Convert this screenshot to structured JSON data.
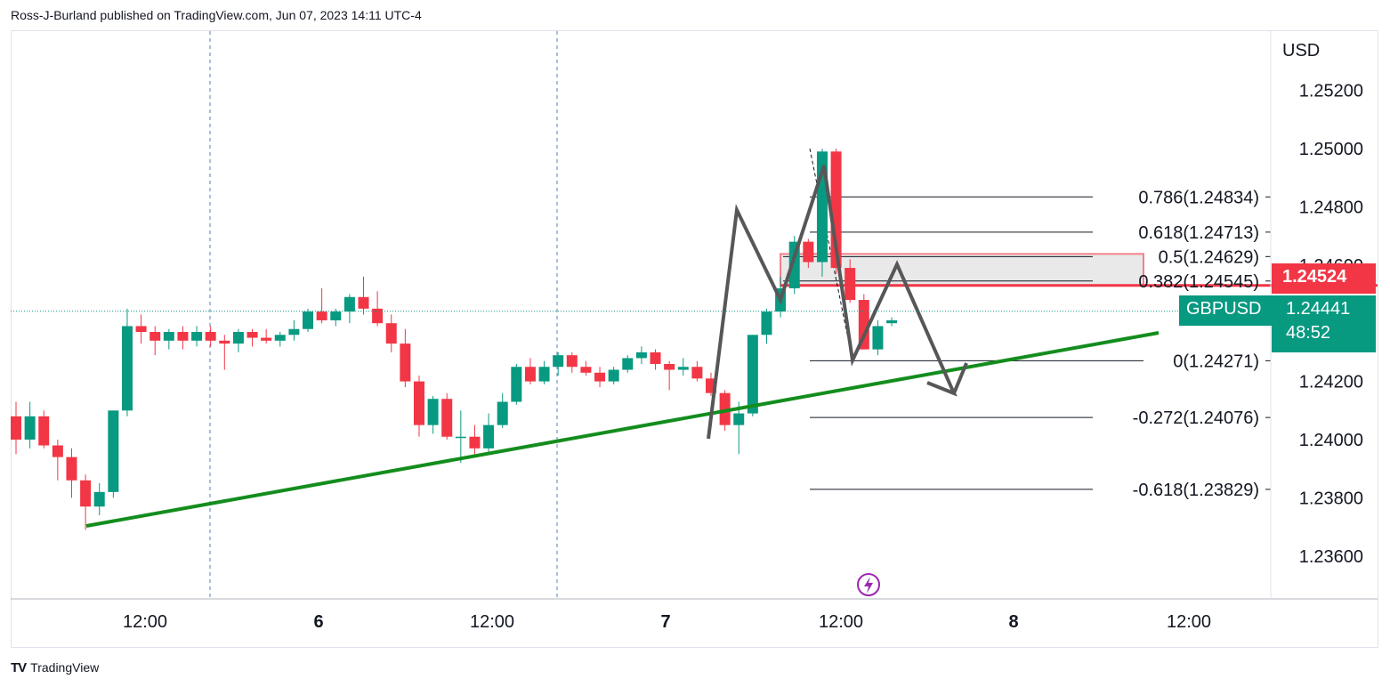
{
  "header": {
    "attribution": "Ross-J-Burland published on TradingView.com, Jun 07, 2023 14:11 UTC-4"
  },
  "footer": {
    "brand": "TradingView",
    "logo_icon": "tradingview-logo-icon"
  },
  "chart_data": {
    "type": "candlestick",
    "symbol": "GBPUSD",
    "currency_label": "USD",
    "y_ticks": [
      "1.25200",
      "1.25000",
      "1.24800",
      "1.24600",
      "1.24200",
      "1.24000",
      "1.23800",
      "1.23600"
    ],
    "x_ticks": [
      "12:00",
      "6",
      "12:00",
      "7",
      "12:00",
      "8",
      "12:00"
    ],
    "last_price": {
      "value": "1.24441",
      "countdown": "48:52",
      "color": "#089981"
    },
    "marked_price": {
      "value": "1.24524",
      "color": "#f23645"
    },
    "fib_levels": [
      {
        "ratio": "0.786",
        "price": 1.24834,
        "label": "0.786(1.24834)"
      },
      {
        "ratio": "0.618",
        "price": 1.24713,
        "label": "0.618(1.24713)"
      },
      {
        "ratio": "0.5",
        "price": 1.24629,
        "label": "0.5(1.24629)"
      },
      {
        "ratio": "0.382",
        "price": 1.24545,
        "label": "0.382(1.24545)"
      },
      {
        "ratio": "0",
        "price": 1.24271,
        "label": "0(1.24271)"
      },
      {
        "ratio": "-0.272",
        "price": 1.24076,
        "label": "-0.272(1.24076)"
      },
      {
        "ratio": "-0.618",
        "price": 1.23829,
        "label": "-0.618(1.23829)"
      }
    ],
    "candles": [
      {
        "o": 1.2408,
        "h": 1.2413,
        "l": 1.2395,
        "c": 1.24
      },
      {
        "o": 1.24,
        "h": 1.2413,
        "l": 1.2397,
        "c": 1.2408
      },
      {
        "o": 1.2408,
        "h": 1.241,
        "l": 1.2397,
        "c": 1.2398
      },
      {
        "o": 1.2398,
        "h": 1.24,
        "l": 1.2386,
        "c": 1.2394
      },
      {
        "o": 1.2394,
        "h": 1.2397,
        "l": 1.238,
        "c": 1.2386
      },
      {
        "o": 1.2386,
        "h": 1.2388,
        "l": 1.2369,
        "c": 1.2377
      },
      {
        "o": 1.2377,
        "h": 1.2385,
        "l": 1.2374,
        "c": 1.2382
      },
      {
        "o": 1.2382,
        "h": 1.241,
        "l": 1.238,
        "c": 1.241
      },
      {
        "o": 1.241,
        "h": 1.2445,
        "l": 1.2408,
        "c": 1.2439
      },
      {
        "o": 1.2439,
        "h": 1.2443,
        "l": 1.2433,
        "c": 1.2437
      },
      {
        "o": 1.2437,
        "h": 1.2439,
        "l": 1.2429,
        "c": 1.2434
      },
      {
        "o": 1.2434,
        "h": 1.2438,
        "l": 1.2431,
        "c": 1.2437
      },
      {
        "o": 1.2437,
        "h": 1.2439,
        "l": 1.2431,
        "c": 1.2434
      },
      {
        "o": 1.2434,
        "h": 1.2439,
        "l": 1.2432,
        "c": 1.2437
      },
      {
        "o": 1.2437,
        "h": 1.2439,
        "l": 1.2432,
        "c": 1.2434
      },
      {
        "o": 1.2434,
        "h": 1.2436,
        "l": 1.2424,
        "c": 1.2433
      },
      {
        "o": 1.2433,
        "h": 1.2438,
        "l": 1.243,
        "c": 1.2437
      },
      {
        "o": 1.2437,
        "h": 1.2438,
        "l": 1.2432,
        "c": 1.2435
      },
      {
        "o": 1.2435,
        "h": 1.2438,
        "l": 1.2433,
        "c": 1.2434
      },
      {
        "o": 1.2434,
        "h": 1.2437,
        "l": 1.2432,
        "c": 1.2436
      },
      {
        "o": 1.2436,
        "h": 1.2441,
        "l": 1.2434,
        "c": 1.2438
      },
      {
        "o": 1.2438,
        "h": 1.2445,
        "l": 1.2437,
        "c": 1.2444
      },
      {
        "o": 1.2444,
        "h": 1.2452,
        "l": 1.244,
        "c": 1.2441
      },
      {
        "o": 1.2441,
        "h": 1.2445,
        "l": 1.2439,
        "c": 1.2444
      },
      {
        "o": 1.2444,
        "h": 1.245,
        "l": 1.244,
        "c": 1.2449
      },
      {
        "o": 1.2449,
        "h": 1.2456,
        "l": 1.2443,
        "c": 1.2445
      },
      {
        "o": 1.2445,
        "h": 1.2451,
        "l": 1.2439,
        "c": 1.244
      },
      {
        "o": 1.244,
        "h": 1.2443,
        "l": 1.243,
        "c": 1.2433
      },
      {
        "o": 1.2433,
        "h": 1.2438,
        "l": 1.2418,
        "c": 1.242
      },
      {
        "o": 1.242,
        "h": 1.2422,
        "l": 1.2401,
        "c": 1.2405
      },
      {
        "o": 1.2405,
        "h": 1.2415,
        "l": 1.2402,
        "c": 1.2414
      },
      {
        "o": 1.2414,
        "h": 1.2416,
        "l": 1.24,
        "c": 1.2401
      },
      {
        "o": 1.2401,
        "h": 1.241,
        "l": 1.2392,
        "c": 1.2401
      },
      {
        "o": 1.2401,
        "h": 1.2405,
        "l": 1.2395,
        "c": 1.2397
      },
      {
        "o": 1.2397,
        "h": 1.2409,
        "l": 1.2395,
        "c": 1.2405
      },
      {
        "o": 1.2405,
        "h": 1.2416,
        "l": 1.2404,
        "c": 1.2413
      },
      {
        "o": 1.2413,
        "h": 1.2426,
        "l": 1.2412,
        "c": 1.2425
      },
      {
        "o": 1.2425,
        "h": 1.2428,
        "l": 1.2419,
        "c": 1.242
      },
      {
        "o": 1.242,
        "h": 1.2427,
        "l": 1.2419,
        "c": 1.2425
      },
      {
        "o": 1.2425,
        "h": 1.243,
        "l": 1.2422,
        "c": 1.2429
      },
      {
        "o": 1.2429,
        "h": 1.243,
        "l": 1.2423,
        "c": 1.2425
      },
      {
        "o": 1.2425,
        "h": 1.2427,
        "l": 1.2422,
        "c": 1.2423
      },
      {
        "o": 1.2423,
        "h": 1.2425,
        "l": 1.2418,
        "c": 1.242
      },
      {
        "o": 1.242,
        "h": 1.2425,
        "l": 1.2419,
        "c": 1.2424
      },
      {
        "o": 1.2424,
        "h": 1.2429,
        "l": 1.2423,
        "c": 1.2428
      },
      {
        "o": 1.2428,
        "h": 1.2432,
        "l": 1.2426,
        "c": 1.243
      },
      {
        "o": 1.243,
        "h": 1.2431,
        "l": 1.2424,
        "c": 1.2426
      },
      {
        "o": 1.2426,
        "h": 1.2427,
        "l": 1.2417,
        "c": 1.2424
      },
      {
        "o": 1.2424,
        "h": 1.2428,
        "l": 1.2422,
        "c": 1.2425
      },
      {
        "o": 1.2425,
        "h": 1.2427,
        "l": 1.242,
        "c": 1.2421
      },
      {
        "o": 1.2421,
        "h": 1.2423,
        "l": 1.2415,
        "c": 1.2416
      },
      {
        "o": 1.2416,
        "h": 1.2417,
        "l": 1.2403,
        "c": 1.2405
      },
      {
        "o": 1.2405,
        "h": 1.2413,
        "l": 1.2395,
        "c": 1.2409
      },
      {
        "o": 1.2409,
        "h": 1.2436,
        "l": 1.2408,
        "c": 1.2436
      },
      {
        "o": 1.2436,
        "h": 1.2445,
        "l": 1.2433,
        "c": 1.2444
      },
      {
        "o": 1.2444,
        "h": 1.2456,
        "l": 1.2442,
        "c": 1.2452
      },
      {
        "o": 1.2452,
        "h": 1.247,
        "l": 1.245,
        "c": 1.2468
      },
      {
        "o": 1.2468,
        "h": 1.2469,
        "l": 1.2459,
        "c": 1.2461
      },
      {
        "o": 1.2461,
        "h": 1.25,
        "l": 1.2456,
        "c": 1.2499
      },
      {
        "o": 1.2499,
        "h": 1.25,
        "l": 1.2457,
        "c": 1.2459
      },
      {
        "o": 1.2459,
        "h": 1.2462,
        "l": 1.2447,
        "c": 1.2448
      },
      {
        "o": 1.2448,
        "h": 1.245,
        "l": 1.2431,
        "c": 1.2431
      },
      {
        "o": 1.2431,
        "h": 1.2441,
        "l": 1.2429,
        "c": 1.2439
      },
      {
        "o": 1.244,
        "h": 1.2442,
        "l": 1.2439,
        "c": 1.2441
      }
    ],
    "annotations": {
      "trendline_color": "#138d1d",
      "projection_path_color": "#575757",
      "zone_border_color": "#f23645",
      "zone_fill_color": "#e3e3e3"
    }
  }
}
